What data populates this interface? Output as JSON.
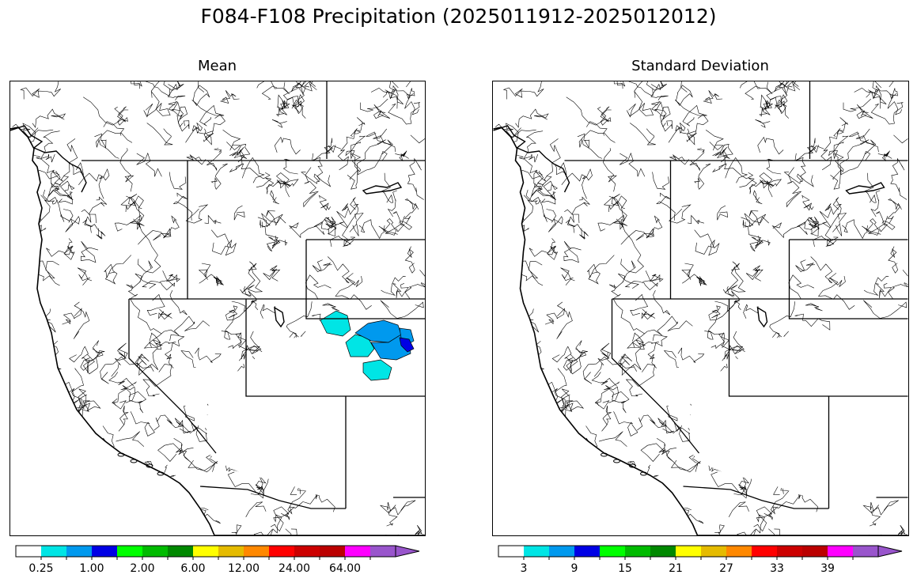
{
  "figure": {
    "title": "F084-F108 Precipitation (2025011912-2025012012)"
  },
  "panels": [
    {
      "title": "Mean",
      "colorbar": {
        "colors": [
          "#ffffff",
          "#00e5e5",
          "#0099ee",
          "#0000e5",
          "#00ff00",
          "#00bb00",
          "#008800",
          "#ffff00",
          "#e5bb00",
          "#ff8800",
          "#ff0000",
          "#cc0000",
          "#bb0000",
          "#ff00ff",
          "#9955cc"
        ],
        "tick_labels": [
          "0.25",
          "1.00",
          "2.00",
          "6.00",
          "12.00",
          "24.00",
          "64.00"
        ]
      },
      "shaded_basins": [
        {
          "color": "#00e5e5",
          "label": "northern cluster"
        },
        {
          "color": "#0099ee",
          "label": "central cluster"
        },
        {
          "color": "#0000e5",
          "label": "eastern edge"
        }
      ]
    },
    {
      "title": "Standard Deviation",
      "colorbar": {
        "colors": [
          "#ffffff",
          "#00e5e5",
          "#0099ee",
          "#0000e5",
          "#00ff00",
          "#00bb00",
          "#008800",
          "#ffff00",
          "#e5bb00",
          "#ff8800",
          "#ff0000",
          "#cc0000",
          "#bb0000",
          "#ff00ff",
          "#9955cc"
        ],
        "tick_labels": [
          "3",
          "9",
          "15",
          "21",
          "27",
          "33",
          "39"
        ]
      }
    }
  ]
}
